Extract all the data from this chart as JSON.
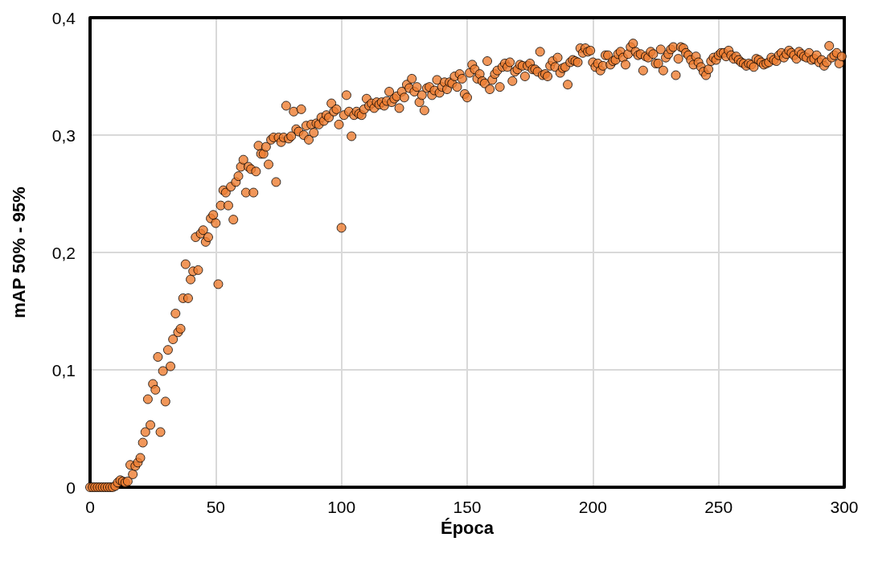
{
  "chart_data": {
    "type": "scatter",
    "xlabel": "Época",
    "ylabel": "mAP 50% - 95%",
    "xlim": [
      0,
      300
    ],
    "xticks": [
      0,
      50,
      100,
      150,
      200,
      250,
      300
    ],
    "ylim": [
      0,
      0.4
    ],
    "yticks": [
      {
        "value": 0,
        "label": "0"
      },
      {
        "value": 0.1,
        "label": "0,1"
      },
      {
        "value": 0.2,
        "label": "0,2"
      },
      {
        "value": 0.3,
        "label": "0,3"
      },
      {
        "value": 0.4,
        "label": "0,4"
      }
    ],
    "grid": true,
    "marker": "circle",
    "x": [
      0,
      1,
      2,
      3,
      4,
      5,
      6,
      7,
      8,
      9,
      10,
      11,
      12,
      13,
      14,
      15,
      16,
      17,
      18,
      19,
      20,
      21,
      22,
      23,
      24,
      25,
      26,
      27,
      28,
      29,
      30,
      31,
      32,
      33,
      34,
      35,
      36,
      37,
      38,
      39,
      40,
      41,
      42,
      43,
      44,
      45,
      46,
      47,
      48,
      49,
      50,
      51,
      52,
      53,
      54,
      55,
      56,
      57,
      58,
      59,
      60,
      61,
      62,
      63,
      64,
      65,
      66,
      67,
      68,
      69,
      70,
      71,
      72,
      73,
      74,
      75,
      76,
      77,
      78,
      79,
      80,
      81,
      82,
      83,
      84,
      85,
      86,
      87,
      88,
      89,
      90,
      91,
      92,
      93,
      94,
      95,
      96,
      97,
      98,
      99,
      100,
      101,
      102,
      103,
      104,
      105,
      106,
      107,
      108,
      109,
      110,
      111,
      112,
      113,
      114,
      115,
      116,
      117,
      118,
      119,
      120,
      121,
      122,
      123,
      124,
      125,
      126,
      127,
      128,
      129,
      130,
      131,
      132,
      133,
      134,
      135,
      136,
      137,
      138,
      139,
      140,
      141,
      142,
      143,
      144,
      145,
      146,
      147,
      148,
      149,
      150,
      151,
      152,
      153,
      154,
      155,
      156,
      157,
      158,
      159,
      160,
      161,
      162,
      163,
      164,
      165,
      166,
      167,
      168,
      169,
      170,
      171,
      172,
      173,
      174,
      175,
      176,
      177,
      178,
      179,
      180,
      181,
      182,
      183,
      184,
      185,
      186,
      187,
      188,
      189,
      190,
      191,
      192,
      193,
      194,
      195,
      196,
      197,
      198,
      199,
      200,
      201,
      202,
      203,
      204,
      205,
      206,
      207,
      208,
      209,
      210,
      211,
      212,
      213,
      214,
      215,
      216,
      217,
      218,
      219,
      220,
      221,
      222,
      223,
      224,
      225,
      226,
      227,
      228,
      229,
      230,
      231,
      232,
      233,
      234,
      235,
      236,
      237,
      238,
      239,
      240,
      241,
      242,
      243,
      244,
      245,
      246,
      247,
      248,
      249,
      250,
      251,
      252,
      253,
      254,
      255,
      256,
      257,
      258,
      259,
      260,
      261,
      262,
      263,
      264,
      265,
      266,
      267,
      268,
      269,
      270,
      271,
      272,
      273,
      274,
      275,
      276,
      277,
      278,
      279,
      280,
      281,
      282,
      283,
      284,
      285,
      286,
      287,
      288,
      289,
      290,
      291,
      292,
      293,
      294,
      295,
      296,
      297,
      298,
      299
    ],
    "series": [
      {
        "color": "#ed7d31",
        "values": [
          0,
          0,
          0,
          0,
          0,
          0,
          0,
          0,
          0,
          0,
          0.001,
          0.004,
          0.006,
          0.005,
          0.004,
          0.005,
          0.019,
          0.011,
          0.018,
          0.021,
          0.025,
          0.038,
          0.047,
          0.075,
          0.053,
          0.088,
          0.083,
          0.111,
          0.047,
          0.099,
          0.073,
          0.117,
          0.103,
          0.126,
          0.148,
          0.132,
          0.135,
          0.161,
          0.19,
          0.161,
          0.177,
          0.184,
          0.213,
          0.185,
          0.216,
          0.219,
          0.209,
          0.213,
          0.229,
          0.232,
          0.225,
          0.173,
          0.24,
          0.253,
          0.251,
          0.24,
          0.256,
          0.228,
          0.26,
          0.265,
          0.273,
          0.279,
          0.251,
          0.273,
          0.271,
          0.251,
          0.269,
          0.291,
          0.284,
          0.284,
          0.29,
          0.275,
          0.296,
          0.298,
          0.26,
          0.298,
          0.294,
          0.298,
          0.325,
          0.297,
          0.299,
          0.32,
          0.305,
          0.303,
          0.322,
          0.3,
          0.308,
          0.296,
          0.309,
          0.302,
          0.31,
          0.309,
          0.315,
          0.312,
          0.317,
          0.315,
          0.327,
          0.32,
          0.322,
          0.309,
          0.221,
          0.317,
          0.334,
          0.32,
          0.299,
          0.317,
          0.32,
          0.318,
          0.317,
          0.322,
          0.331,
          0.325,
          0.327,
          0.323,
          0.328,
          0.326,
          0.328,
          0.325,
          0.329,
          0.337,
          0.328,
          0.331,
          0.333,
          0.323,
          0.337,
          0.332,
          0.343,
          0.34,
          0.348,
          0.337,
          0.341,
          0.328,
          0.334,
          0.321,
          0.34,
          0.341,
          0.334,
          0.338,
          0.347,
          0.336,
          0.341,
          0.345,
          0.339,
          0.345,
          0.344,
          0.35,
          0.341,
          0.352,
          0.348,
          0.335,
          0.332,
          0.353,
          0.36,
          0.356,
          0.348,
          0.352,
          0.346,
          0.344,
          0.363,
          0.339,
          0.347,
          0.352,
          0.355,
          0.341,
          0.358,
          0.361,
          0.358,
          0.362,
          0.346,
          0.354,
          0.356,
          0.36,
          0.359,
          0.35,
          0.359,
          0.361,
          0.356,
          0.356,
          0.354,
          0.371,
          0.351,
          0.352,
          0.35,
          0.359,
          0.363,
          0.358,
          0.366,
          0.353,
          0.357,
          0.358,
          0.343,
          0.362,
          0.364,
          0.363,
          0.362,
          0.374,
          0.37,
          0.374,
          0.371,
          0.372,
          0.362,
          0.358,
          0.361,
          0.355,
          0.359,
          0.368,
          0.368,
          0.36,
          0.363,
          0.364,
          0.369,
          0.371,
          0.366,
          0.36,
          0.369,
          0.375,
          0.378,
          0.371,
          0.368,
          0.369,
          0.355,
          0.367,
          0.366,
          0.371,
          0.369,
          0.361,
          0.361,
          0.373,
          0.355,
          0.366,
          0.369,
          0.373,
          0.375,
          0.351,
          0.365,
          0.375,
          0.374,
          0.37,
          0.368,
          0.364,
          0.36,
          0.367,
          0.362,
          0.358,
          0.354,
          0.351,
          0.356,
          0.363,
          0.366,
          0.364,
          0.368,
          0.37,
          0.37,
          0.367,
          0.372,
          0.368,
          0.365,
          0.367,
          0.364,
          0.362,
          0.361,
          0.359,
          0.361,
          0.36,
          0.358,
          0.365,
          0.364,
          0.362,
          0.36,
          0.361,
          0.362,
          0.366,
          0.364,
          0.363,
          0.368,
          0.37,
          0.366,
          0.369,
          0.372,
          0.37,
          0.368,
          0.365,
          0.371,
          0.369,
          0.367,
          0.366,
          0.37,
          0.364,
          0.365,
          0.368,
          0.362,
          0.364,
          0.359,
          0.362,
          0.376,
          0.366,
          0.368,
          0.37,
          0.361,
          0.367
        ]
      }
    ]
  }
}
